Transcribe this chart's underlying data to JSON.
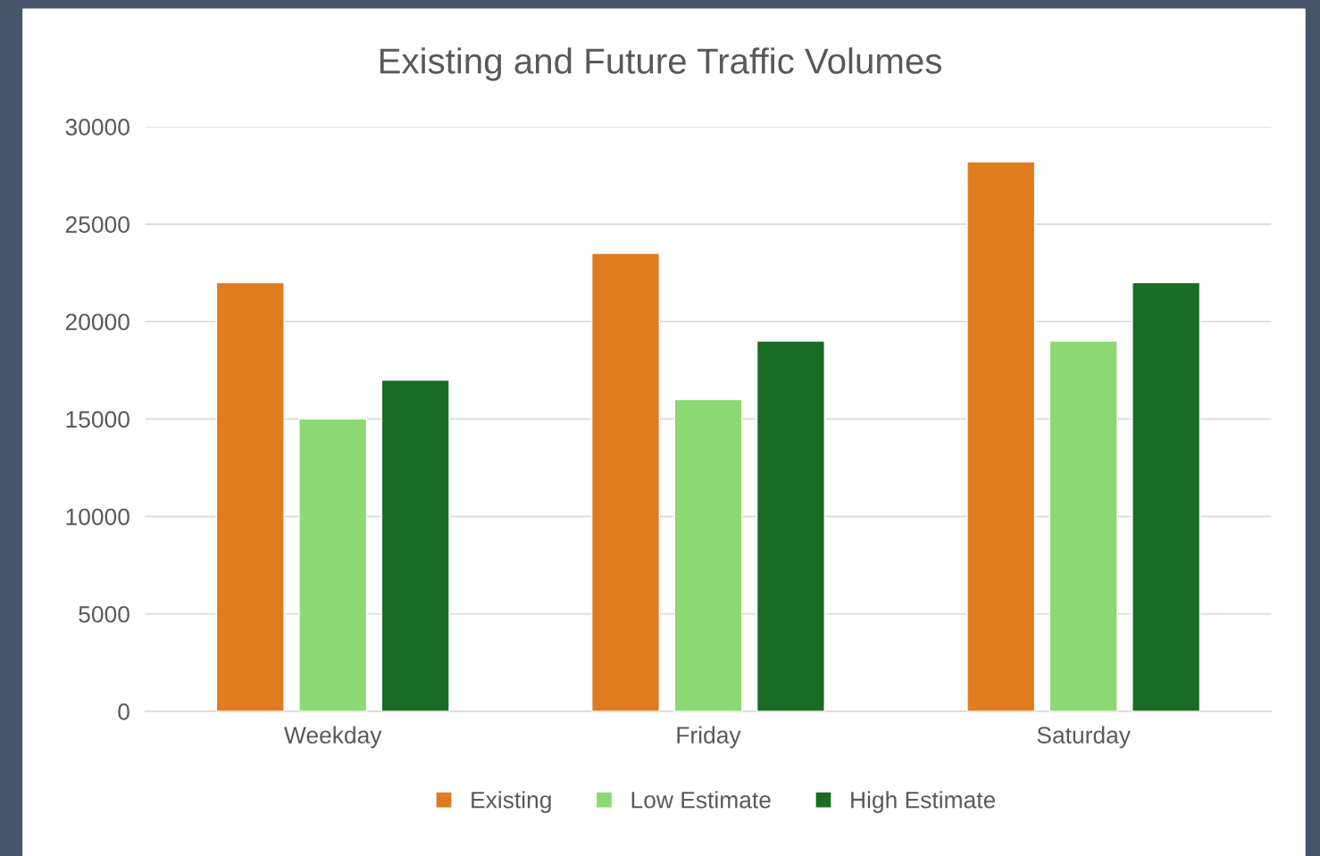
{
  "chart_data": {
    "type": "bar",
    "title": "Existing and Future Traffic Volumes",
    "categories": [
      "Weekday",
      "Friday",
      "Saturday"
    ],
    "series": [
      {
        "name": "Existing",
        "color": "#e07b20",
        "values": [
          22000,
          23500,
          28200
        ]
      },
      {
        "name": "Low Estimate",
        "color": "#8cd872",
        "values": [
          15000,
          16000,
          19000
        ]
      },
      {
        "name": "High Estimate",
        "color": "#1a6b23",
        "values": [
          17000,
          19000,
          22000
        ]
      }
    ],
    "ylim": [
      0,
      30000
    ],
    "yticks": [
      0,
      5000,
      10000,
      15000,
      20000,
      25000,
      30000
    ],
    "grid": "y",
    "legend": "bottom"
  }
}
